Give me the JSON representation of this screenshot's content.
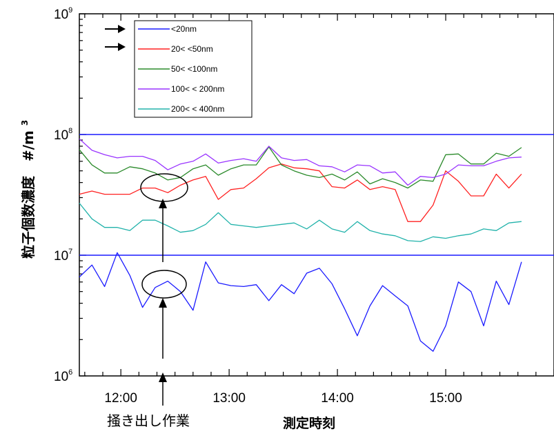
{
  "chart_data": {
    "type": "line",
    "y_scale": "log",
    "ylim": [
      1000000,
      1000000000
    ],
    "y_ticks": [
      {
        "value": 1000000,
        "base": "10",
        "exp": "6"
      },
      {
        "value": 10000000,
        "base": "10",
        "exp": "7"
      },
      {
        "value": 100000000,
        "base": "10",
        "exp": "8"
      },
      {
        "value": 1000000000,
        "base": "10",
        "exp": "9"
      }
    ],
    "xlim": [
      "11:37",
      "16:00"
    ],
    "x_ticks": [
      "12:00",
      "13:00",
      "14:00",
      "15:00"
    ],
    "ylabel": "粒子個数濃度",
    "ylabel_unit": "#/m",
    "ylabel_unit_sup": "3",
    "xlabel": "測定時刻",
    "reference_lines": [
      10000000,
      100000000
    ],
    "grid": false,
    "legend_position": "top-left",
    "annotation": "掻き出し作業",
    "annotation_time": "12:20",
    "x": [
      "11:37",
      "11:44",
      "11:51",
      "11:58",
      "12:05",
      "12:12",
      "12:19",
      "12:26",
      "12:33",
      "12:40",
      "12:47",
      "12:54",
      "13:01",
      "13:08",
      "13:15",
      "13:22",
      "13:29",
      "13:36",
      "13:43",
      "13:50",
      "13:57",
      "14:04",
      "14:11",
      "14:18",
      "14:25",
      "14:32",
      "14:39",
      "14:46",
      "14:53",
      "15:00",
      "15:07",
      "15:14",
      "15:21",
      "15:28",
      "15:35",
      "15:42"
    ],
    "series": [
      {
        "name": "<20nm",
        "color": "#1a1aff",
        "values": [
          6600000,
          8300000,
          5500000,
          10500000,
          6800000,
          3700000,
          5400000,
          6100000,
          5000000,
          3500000,
          8800000,
          5900000,
          5600000,
          5500000,
          5700000,
          4200000,
          5700000,
          4800000,
          7100000,
          7800000,
          5800000,
          3600000,
          2150000,
          3800000,
          5600000,
          4600000,
          3800000,
          1950000,
          1600000,
          2600000,
          6000000,
          5000000,
          2600000,
          6100000,
          3900000,
          8800000
        ]
      },
      {
        "name": "20< <50nm",
        "color": "#ff2020",
        "values": [
          32000000,
          34000000,
          32000000,
          32000000,
          32000000,
          36000000,
          36000000,
          33000000,
          38000000,
          42000000,
          45000000,
          29000000,
          35000000,
          36000000,
          43000000,
          53000000,
          57000000,
          53000000,
          52000000,
          50000000,
          37000000,
          36000000,
          42000000,
          35000000,
          37000000,
          35000000,
          19000000,
          19000000,
          26000000,
          50000000,
          41000000,
          31000000,
          31000000,
          47000000,
          36000000,
          47000000
        ]
      },
      {
        "name": "50< <100nm",
        "color": "#2a8a2a",
        "values": [
          75000000,
          56000000,
          48000000,
          48000000,
          54000000,
          52000000,
          48000000,
          42000000,
          44000000,
          52000000,
          56000000,
          46000000,
          52000000,
          56000000,
          56000000,
          79000000,
          56000000,
          50000000,
          46000000,
          44000000,
          47000000,
          42000000,
          49000000,
          39000000,
          43000000,
          40000000,
          36000000,
          42000000,
          41000000,
          68000000,
          69000000,
          57000000,
          57000000,
          70000000,
          66000000,
          78000000
        ]
      },
      {
        "name": "100< < 200nm",
        "color": "#9933ff",
        "values": [
          92000000,
          74000000,
          68000000,
          64000000,
          66000000,
          66000000,
          61000000,
          51000000,
          57000000,
          60000000,
          69000000,
          58000000,
          61000000,
          63000000,
          60000000,
          80000000,
          64000000,
          61000000,
          62000000,
          55000000,
          54000000,
          49000000,
          56000000,
          55000000,
          48000000,
          49000000,
          38000000,
          45000000,
          44000000,
          47000000,
          56000000,
          55000000,
          55000000,
          60000000,
          64000000,
          65000000
        ]
      },
      {
        "name": "200< < 400nm",
        "color": "#20b2aa",
        "values": [
          27000000,
          20000000,
          17000000,
          17000000,
          16000000,
          19500000,
          19500000,
          17500000,
          15500000,
          16000000,
          18000000,
          22500000,
          18000000,
          17500000,
          17000000,
          17500000,
          18000000,
          18500000,
          16500000,
          19500000,
          16500000,
          15500000,
          19000000,
          16000000,
          15000000,
          14500000,
          13200000,
          13000000,
          14200000,
          13800000,
          14500000,
          15000000,
          16500000,
          16000000,
          18500000,
          19000000
        ]
      }
    ]
  }
}
